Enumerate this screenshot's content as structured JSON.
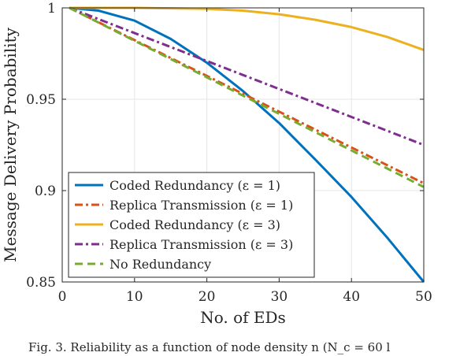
{
  "chart_data": {
    "type": "line",
    "xlabel": "No. of EDs",
    "ylabel": "Message Delivery Probability",
    "xlim": [
      0,
      50
    ],
    "ylim": [
      0.85,
      1
    ],
    "xticks": [
      "0",
      "10",
      "20",
      "30",
      "40",
      "50"
    ],
    "yticks": [
      "0.85",
      "0.9",
      "0.95",
      "1"
    ],
    "grid": true,
    "legend_position": "bottom-left",
    "series": [
      {
        "name": "Coded Redundancy (ε = 1)",
        "color": "#0072BD",
        "dash": "solid",
        "x": [
          1,
          5,
          10,
          15,
          20,
          25,
          30,
          35,
          40,
          45,
          50
        ],
        "y": [
          1.0,
          0.9985,
          0.993,
          0.983,
          0.97,
          0.9545,
          0.937,
          0.917,
          0.8965,
          0.874,
          0.85
        ]
      },
      {
        "name": "Replica Transmission (ε = 1)",
        "color": "#D95319",
        "dash": "dashdot",
        "x": [
          1,
          50
        ],
        "y": [
          1.0,
          0.904
        ]
      },
      {
        "name": "Coded Redundancy (ε = 3)",
        "color": "#EDB120",
        "dash": "solid",
        "x": [
          1,
          10,
          20,
          25,
          30,
          35,
          40,
          45,
          50
        ],
        "y": [
          1.0,
          1.0,
          0.9995,
          0.9985,
          0.9965,
          0.9935,
          0.9895,
          0.984,
          0.977
        ]
      },
      {
        "name": "Replica Transmission (ε = 3)",
        "color": "#7E2F8E",
        "dash": "dashdot",
        "x": [
          1,
          50
        ],
        "y": [
          1.0,
          0.925
        ]
      },
      {
        "name": "No Redundancy",
        "color": "#77AC30",
        "dash": "dashed",
        "x": [
          1,
          50
        ],
        "y": [
          1.0,
          0.902
        ]
      }
    ]
  },
  "caption": "Fig. 3.  Reliability as a function of node density n (N_c = 60 l"
}
